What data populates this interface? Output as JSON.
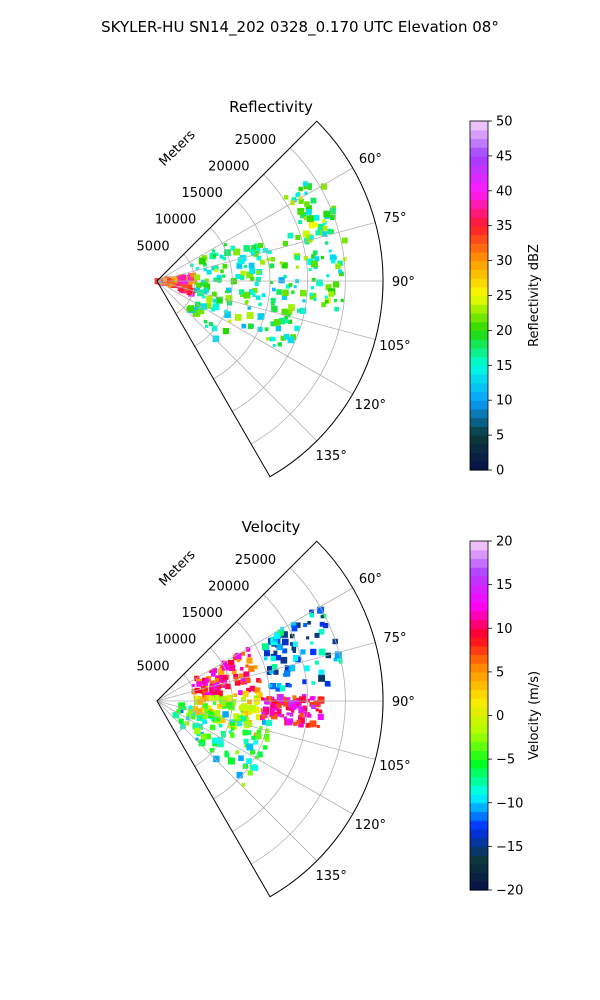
{
  "figure": {
    "title": "SKYLER-HU  SN14_202  0328_0.170 UTC Elevation 08°"
  },
  "chart_data": [
    {
      "type": "heatmap",
      "projection": "polar-sector",
      "title": "Reflectivity",
      "radial_label": "Meters",
      "theta_range_deg": [
        45,
        150
      ],
      "theta_ticks": [
        "60°",
        "75°",
        "90°",
        "105°",
        "120°",
        "135°"
      ],
      "theta_tick_values": [
        60,
        75,
        90,
        105,
        120,
        135
      ],
      "r_range": [
        0,
        30000
      ],
      "r_ticks": [
        "5000",
        "10000",
        "15000",
        "20000",
        "25000"
      ],
      "r_tick_values": [
        5000,
        10000,
        15000,
        20000,
        25000
      ],
      "grid": true,
      "colorbar": {
        "label": "Reflectivity dBZ",
        "range": [
          0,
          50
        ],
        "ticks": [
          "0",
          "5",
          "10",
          "15",
          "20",
          "25",
          "30",
          "35",
          "40",
          "45",
          "50"
        ],
        "tick_values": [
          0,
          5,
          10,
          15,
          20,
          25,
          30,
          35,
          40,
          45,
          50
        ],
        "colormap": [
          "#08104a",
          "#0a3a3a",
          "#0aa0ff",
          "#00ffe0",
          "#23d800",
          "#f5ff00",
          "#ff9a00",
          "#ff1a2a",
          "#ff1aff",
          "#a040ff",
          "#f6d4f8"
        ]
      },
      "echo_regions": [
        {
          "theta_deg": [
            80,
            110
          ],
          "r": [
            0,
            5000
          ],
          "value": 35
        },
        {
          "theta_deg": [
            60,
            135
          ],
          "r": [
            5000,
            12000
          ],
          "value": 18
        },
        {
          "theta_deg": [
            70,
            120
          ],
          "r": [
            12000,
            20000
          ],
          "value": 17
        },
        {
          "theta_deg": [
            55,
            100
          ],
          "r": [
            20000,
            25500
          ],
          "value": 19
        }
      ]
    },
    {
      "type": "heatmap",
      "projection": "polar-sector",
      "title": "Velocity",
      "radial_label": "Meters",
      "theta_range_deg": [
        45,
        150
      ],
      "theta_ticks": [
        "60°",
        "75°",
        "90°",
        "105°",
        "120°",
        "135°"
      ],
      "theta_tick_values": [
        60,
        75,
        90,
        105,
        120,
        135
      ],
      "r_range": [
        0,
        30000
      ],
      "r_ticks": [
        "5000",
        "10000",
        "15000",
        "20000",
        "25000"
      ],
      "r_tick_values": [
        5000,
        10000,
        15000,
        20000,
        25000
      ],
      "grid": true,
      "colorbar": {
        "label": "Velocity (m/s)",
        "range": [
          -20,
          20
        ],
        "ticks": [
          "−20",
          "−15",
          "−10",
          "−5",
          "0",
          "5",
          "10",
          "15",
          "20"
        ],
        "tick_values": [
          -20,
          -15,
          -10,
          -5,
          0,
          5,
          10,
          15,
          20
        ],
        "colormap": [
          "#08104a",
          "#0a3a3a",
          "#0030ff",
          "#00ffff",
          "#00ff20",
          "#b0ff00",
          "#ffe800",
          "#ff8c00",
          "#ff0020",
          "#ff00ff",
          "#b040ff",
          "#f6d4f8"
        ]
      },
      "echo_regions": [
        {
          "theta_deg": [
            60,
            85
          ],
          "r": [
            5000,
            14000
          ],
          "value": 9
        },
        {
          "theta_deg": [
            85,
            110
          ],
          "r": [
            5000,
            14000
          ],
          "value": 0
        },
        {
          "theta_deg": [
            100,
            135
          ],
          "r": [
            3000,
            16000
          ],
          "value": -7
        },
        {
          "theta_deg": [
            60,
            85
          ],
          "r": [
            15000,
            25000
          ],
          "value": -11
        },
        {
          "theta_deg": [
            88,
            100
          ],
          "r": [
            14000,
            22000
          ],
          "value": 11
        }
      ]
    }
  ]
}
